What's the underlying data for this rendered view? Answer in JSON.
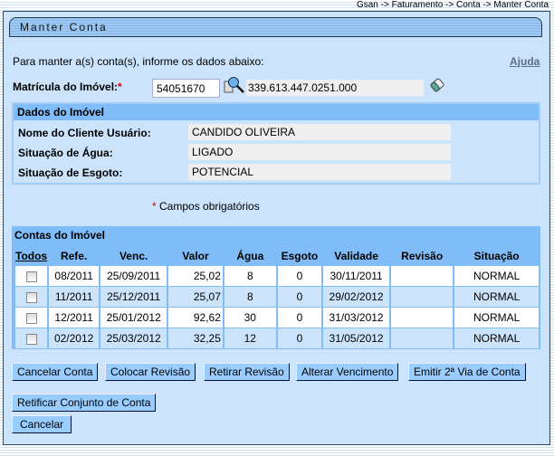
{
  "breadcrumb": "Gsan -> Faturamento -> Conta -> Manter Conta",
  "title": "Manter Conta",
  "intro": "Para manter a(s) conta(s), informe os dados abaixo:",
  "help_link": "Ajuda",
  "matricula": {
    "label": "Matrícula do Imóvel:",
    "required_mark": "*",
    "value": "54051670",
    "inscricao": "339.613.447.0251.000"
  },
  "dados": {
    "title": "Dados do Imóvel",
    "rows": [
      {
        "label": "Nome do Cliente Usuário:",
        "value": "CANDIDO OLIVEIRA"
      },
      {
        "label": "Situação de Água:",
        "value": "LIGADO"
      },
      {
        "label": "Situação de Esgoto:",
        "value": "POTENCIAL"
      }
    ]
  },
  "required_note": {
    "star": "*",
    "text": " Campos obrigatórios"
  },
  "contas": {
    "title": "Contas do Imóvel",
    "columns": [
      "Todos",
      "Refe.",
      "Venc.",
      "Valor",
      "Água",
      "Esgoto",
      "Validade",
      "Revisão",
      "Situação"
    ],
    "rows": [
      {
        "checked": false,
        "ref": "08/2011",
        "venc": "25/09/2011",
        "valor": "25,02",
        "agua": "8",
        "esgoto": "0",
        "validade": "30/11/2011",
        "revisao": "",
        "situacao": "NORMAL"
      },
      {
        "checked": false,
        "ref": "11/2011",
        "venc": "25/12/2011",
        "valor": "25,07",
        "agua": "8",
        "esgoto": "0",
        "validade": "29/02/2012",
        "revisao": "",
        "situacao": "NORMAL"
      },
      {
        "checked": false,
        "ref": "12/2011",
        "venc": "25/01/2012",
        "valor": "92,62",
        "agua": "30",
        "esgoto": "0",
        "validade": "31/03/2012",
        "revisao": "",
        "situacao": "NORMAL"
      },
      {
        "checked": false,
        "ref": "02/2012",
        "venc": "25/03/2012",
        "valor": "32,25",
        "agua": "12",
        "esgoto": "0",
        "validade": "31/05/2012",
        "revisao": "",
        "situacao": "NORMAL"
      }
    ]
  },
  "buttons": {
    "cancelar_conta": "Cancelar Conta",
    "colocar_revisao": "Colocar Revisão",
    "retirar_revisao": "Retirar Revisão",
    "alterar_vencimento": "Alterar Vencimento",
    "emitir_2via": "Emitir 2ª Via de Conta",
    "retificar": "Retificar Conjunto de Conta",
    "cancelar": "Cancelar"
  },
  "icons": {
    "search": "magnifier-icon",
    "clear": "eraser-icon"
  }
}
